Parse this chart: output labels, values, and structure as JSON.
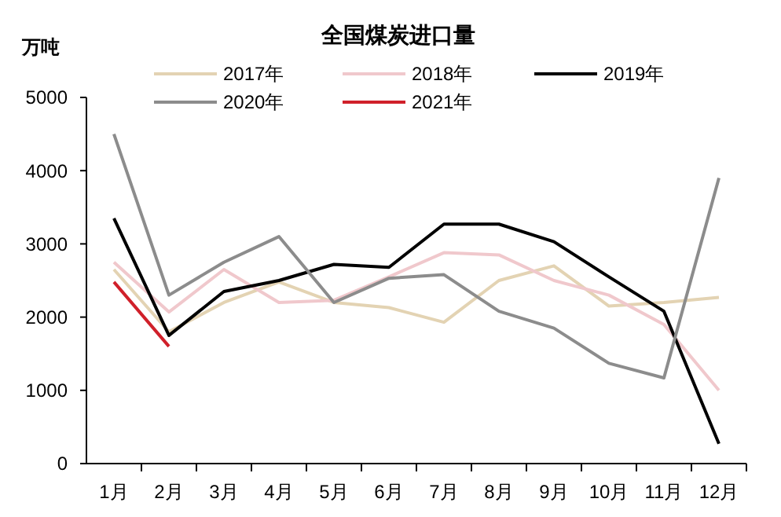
{
  "chart_data": {
    "type": "line",
    "title": "全国煤炭进口量",
    "ylabel": "万吨",
    "categories": [
      "1月",
      "2月",
      "3月",
      "4月",
      "5月",
      "6月",
      "7月",
      "8月",
      "9月",
      "10月",
      "11月",
      "12月"
    ],
    "ylim": [
      0,
      5000
    ],
    "yticks": [
      0,
      1000,
      2000,
      3000,
      4000,
      5000
    ],
    "grid": false,
    "legend": "top",
    "marker": "none",
    "series": [
      {
        "name": "2017年",
        "color": "#e3d3b3",
        "values": [
          2650,
          1800,
          2200,
          2480,
          2200,
          2130,
          1930,
          2500,
          2700,
          2150,
          2200,
          2270
        ]
      },
      {
        "name": "2018年",
        "color": "#f0c8cc",
        "values": [
          2750,
          2070,
          2650,
          2200,
          2230,
          2550,
          2880,
          2850,
          2500,
          2300,
          1900,
          1000
        ]
      },
      {
        "name": "2019年",
        "color": "#000000",
        "values": [
          3350,
          1750,
          2350,
          2500,
          2720,
          2680,
          3270,
          3270,
          3030,
          2550,
          2080,
          270
        ]
      },
      {
        "name": "2020年",
        "color": "#8c8c8c",
        "values": [
          4500,
          2300,
          2750,
          3100,
          2200,
          2530,
          2580,
          2080,
          1850,
          1370,
          1170,
          3900
        ]
      },
      {
        "name": "2021年",
        "color": "#d0202a",
        "values": [
          2480,
          1600,
          null,
          null,
          null,
          null,
          null,
          null,
          null,
          null,
          null,
          null
        ]
      }
    ]
  }
}
